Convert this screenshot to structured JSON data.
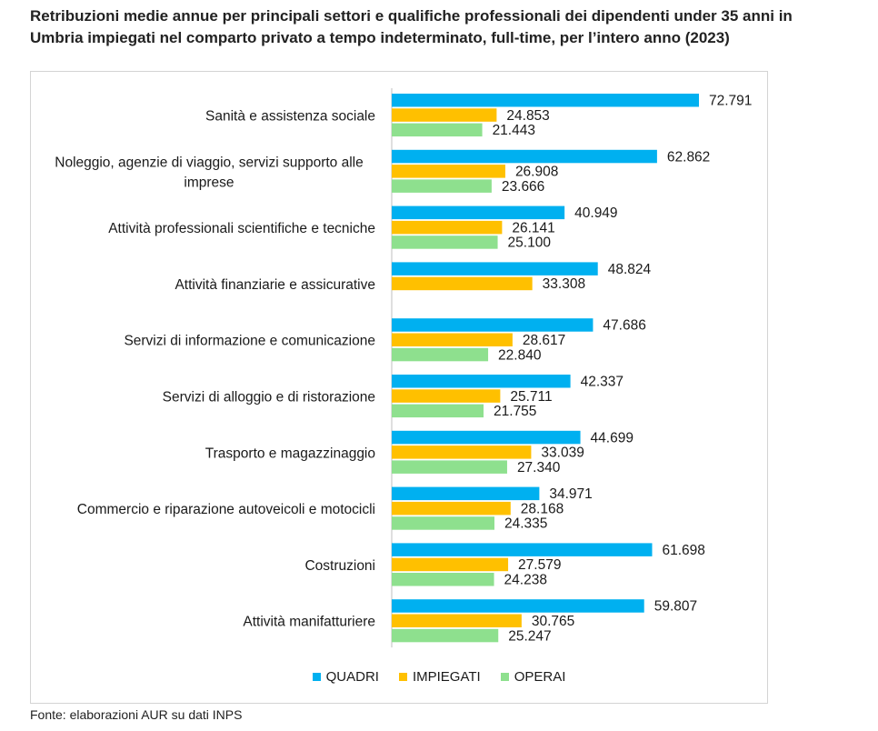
{
  "title": "Retribuzioni medie annue per principali settori e qualifiche professionali dei dipendenti under 35 anni in Umbria impiegati nel comparto privato a tempo indeterminato, full-time, per l’intero anno (2023)",
  "source": "Fonte: elaborazioni AUR su dati INPS",
  "chart_data": {
    "type": "bar",
    "orientation": "horizontal",
    "title": "Retribuzioni medie annue per principali settori e qualifiche professionali dei dipendenti under 35 anni in Umbria impiegati nel comparto privato a tempo indeterminato, full-time, per l’intero anno (2023)",
    "categories": [
      "Sanità e assistenza sociale",
      "Noleggio, agenzie di viaggio, servizi supporto alle imprese",
      "Attività professionali scientifiche e tecniche",
      "Attività finanziarie e assicurative",
      "Servizi di informazione e comunicazione",
      "Servizi di alloggio e di ristorazione",
      "Trasporto e magazzinaggio",
      "Commercio e riparazione autoveicoli e motocicli",
      "Costruzioni",
      "Attività manifatturiere"
    ],
    "category_lines": [
      [
        "Sanità e assistenza sociale"
      ],
      [
        "Noleggio, agenzie di viaggio, servizi supporto alle",
        "imprese"
      ],
      [
        "Attività professionali scientifiche e tecniche"
      ],
      [
        "Attività finanziarie e assicurative"
      ],
      [
        "Servizi di informazione e comunicazione"
      ],
      [
        "Servizi di alloggio e di ristorazione"
      ],
      [
        "Trasporto e magazzinaggio"
      ],
      [
        "Commercio e riparazione autoveicoli e motocicli"
      ],
      [
        "Costruzioni"
      ],
      [
        "Attività manifatturiere"
      ]
    ],
    "series": [
      {
        "name": "QUADRI",
        "color": "#00b0f0",
        "values": [
          72791,
          62862,
          40949,
          48824,
          47686,
          42337,
          44699,
          34971,
          61698,
          59807
        ],
        "labels": [
          "72.791",
          "62.862",
          "40.949",
          "48.824",
          "47.686",
          "42.337",
          "44.699",
          "34.971",
          "61.698",
          "59.807"
        ]
      },
      {
        "name": "IMPIEGATI",
        "color": "#ffc000",
        "values": [
          24853,
          26908,
          26141,
          33308,
          28617,
          25711,
          33039,
          28168,
          27579,
          30765
        ],
        "labels": [
          "24.853",
          "26.908",
          "26.141",
          "33.308",
          "28.617",
          "25.711",
          "33.039",
          "28.168",
          "27.579",
          "30.765"
        ]
      },
      {
        "name": "OPERAI",
        "color": "#8ee08e",
        "values": [
          21443,
          23666,
          25100,
          null,
          22840,
          21755,
          27340,
          24335,
          24238,
          25247
        ],
        "labels": [
          "21.443",
          "23.666",
          "25.100",
          "",
          "22.840",
          "21.755",
          "27.340",
          "24.335",
          "24.238",
          "25.247"
        ]
      }
    ],
    "xlim": [
      0,
      85000
    ],
    "grid": false,
    "legend_position": "bottom"
  }
}
